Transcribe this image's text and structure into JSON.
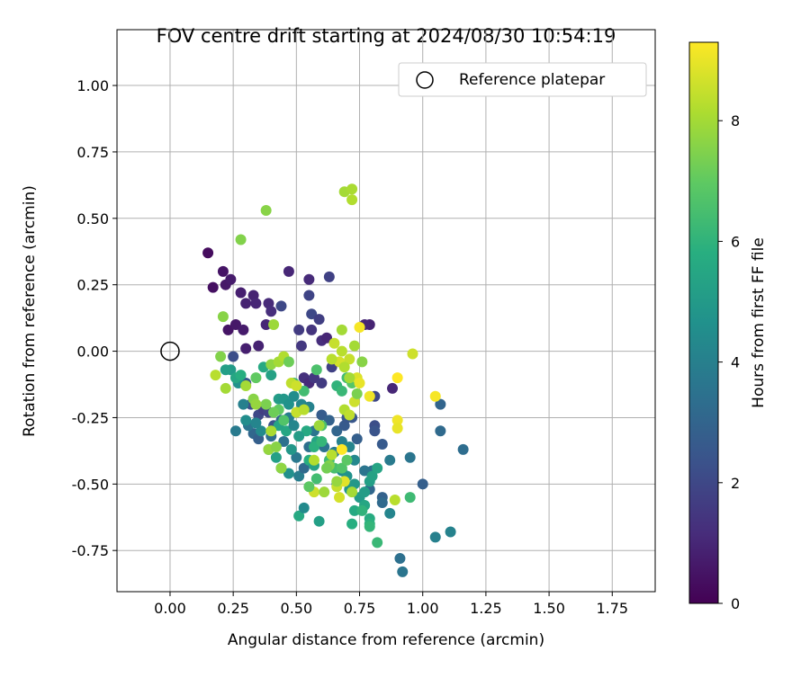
{
  "chart_data": {
    "type": "scatter",
    "title": "FOV centre drift starting at 2024/08/30 10:54:19",
    "xlabel": "Angular distance from reference (arcmin)",
    "ylabel": "Rotation from reference (arcmin)",
    "xlim": [
      -0.21,
      1.92
    ],
    "ylim": [
      -0.905,
      1.21
    ],
    "xticks": [
      "0.00",
      "0.25",
      "0.50",
      "0.75",
      "1.00",
      "1.25",
      "1.50",
      "1.75"
    ],
    "yticks": [
      "-0.75",
      "-0.50",
      "-0.25",
      "0.00",
      "0.25",
      "0.50",
      "0.75",
      "1.00"
    ],
    "grid": true,
    "legend": {
      "placement": "top-right",
      "entries": [
        {
          "label": "Reference platepar",
          "marker": "open-circle"
        }
      ]
    },
    "reference_point": {
      "x": 0.0,
      "y": 0.0
    },
    "colorbar": {
      "label": "Hours from first FF file",
      "range": [
        0,
        9.3
      ],
      "ticks": [
        "0",
        "2",
        "4",
        "6",
        "8"
      ],
      "colormap": "viridis"
    },
    "points": [
      {
        "x": 0.15,
        "y": 0.37,
        "h": 0.3
      },
      {
        "x": 0.17,
        "y": 0.24,
        "h": 0.4
      },
      {
        "x": 0.21,
        "y": 0.3,
        "h": 0.5
      },
      {
        "x": 0.22,
        "y": 0.25,
        "h": 0.6
      },
      {
        "x": 0.24,
        "y": 0.27,
        "h": 0.7
      },
      {
        "x": 0.28,
        "y": 0.22,
        "h": 0.8
      },
      {
        "x": 0.33,
        "y": 0.21,
        "h": 0.9
      },
      {
        "x": 0.34,
        "y": 0.18,
        "h": 1.0
      },
      {
        "x": 0.3,
        "y": 0.18,
        "h": 0.9
      },
      {
        "x": 0.23,
        "y": 0.08,
        "h": 0.5
      },
      {
        "x": 0.26,
        "y": 0.1,
        "h": 0.6
      },
      {
        "x": 0.29,
        "y": 0.08,
        "h": 0.7
      },
      {
        "x": 0.3,
        "y": 0.01,
        "h": 0.8
      },
      {
        "x": 0.35,
        "y": 0.02,
        "h": 0.9
      },
      {
        "x": 0.39,
        "y": 0.18,
        "h": 1.1
      },
      {
        "x": 0.4,
        "y": 0.15,
        "h": 1.2
      },
      {
        "x": 0.38,
        "y": 0.1,
        "h": 1.0
      },
      {
        "x": 0.47,
        "y": 0.3,
        "h": 1.0
      },
      {
        "x": 0.55,
        "y": 0.27,
        "h": 1.1
      },
      {
        "x": 0.63,
        "y": 0.28,
        "h": 1.8
      },
      {
        "x": 0.44,
        "y": 0.17,
        "h": 2.0
      },
      {
        "x": 0.55,
        "y": 0.21,
        "h": 1.9
      },
      {
        "x": 0.56,
        "y": 0.14,
        "h": 2.0
      },
      {
        "x": 0.59,
        "y": 0.12,
        "h": 1.7
      },
      {
        "x": 0.51,
        "y": 0.08,
        "h": 1.6
      },
      {
        "x": 0.52,
        "y": 0.02,
        "h": 1.5
      },
      {
        "x": 0.56,
        "y": 0.08,
        "h": 1.4
      },
      {
        "x": 0.6,
        "y": 0.04,
        "h": 1.2
      },
      {
        "x": 0.62,
        "y": 0.05,
        "h": 1.0
      },
      {
        "x": 0.79,
        "y": 0.1,
        "h": 0.9
      },
      {
        "x": 0.77,
        "y": 0.1,
        "h": 1.0
      },
      {
        "x": 0.53,
        "y": -0.1,
        "h": 1.3
      },
      {
        "x": 0.55,
        "y": -0.12,
        "h": 1.1
      },
      {
        "x": 0.57,
        "y": -0.1,
        "h": 1.5
      },
      {
        "x": 0.6,
        "y": -0.12,
        "h": 1.6
      },
      {
        "x": 0.64,
        "y": -0.06,
        "h": 1.8
      },
      {
        "x": 0.88,
        "y": -0.14,
        "h": 1.0
      },
      {
        "x": 0.81,
        "y": -0.17,
        "h": 2.0
      },
      {
        "x": 0.81,
        "y": -0.28,
        "h": 2.2
      },
      {
        "x": 0.81,
        "y": -0.3,
        "h": 2.4
      },
      {
        "x": 0.84,
        "y": -0.35,
        "h": 2.6
      },
      {
        "x": 0.74,
        "y": -0.33,
        "h": 2.8
      },
      {
        "x": 0.72,
        "y": -0.25,
        "h": 2.5
      },
      {
        "x": 1.07,
        "y": -0.2,
        "h": 3.0
      },
      {
        "x": 1.07,
        "y": -0.3,
        "h": 3.2
      },
      {
        "x": 1.16,
        "y": -0.37,
        "h": 3.3
      },
      {
        "x": 1.0,
        "y": -0.5,
        "h": 2.8
      },
      {
        "x": 0.95,
        "y": -0.4,
        "h": 3.6
      },
      {
        "x": 0.87,
        "y": -0.41,
        "h": 3.8
      },
      {
        "x": 0.91,
        "y": -0.78,
        "h": 3.4
      },
      {
        "x": 0.92,
        "y": -0.83,
        "h": 3.6
      },
      {
        "x": 1.05,
        "y": -0.7,
        "h": 4.0
      },
      {
        "x": 1.11,
        "y": -0.68,
        "h": 4.1
      },
      {
        "x": 0.87,
        "y": -0.61,
        "h": 4.2
      },
      {
        "x": 0.84,
        "y": -0.55,
        "h": 2.9
      },
      {
        "x": 0.84,
        "y": -0.57,
        "h": 3.2
      },
      {
        "x": 0.79,
        "y": -0.52,
        "h": 3.1
      },
      {
        "x": 0.8,
        "y": -0.45,
        "h": 3.4
      },
      {
        "x": 0.77,
        "y": -0.45,
        "h": 3.6
      },
      {
        "x": 0.25,
        "y": -0.02,
        "h": 2.2
      },
      {
        "x": 0.3,
        "y": -0.12,
        "h": 2.5
      },
      {
        "x": 0.32,
        "y": -0.2,
        "h": 2.2
      },
      {
        "x": 0.35,
        "y": -0.24,
        "h": 2.0
      },
      {
        "x": 0.37,
        "y": -0.22,
        "h": 1.7
      },
      {
        "x": 0.39,
        "y": -0.23,
        "h": 1.9
      },
      {
        "x": 0.41,
        "y": -0.28,
        "h": 2.4
      },
      {
        "x": 0.44,
        "y": -0.26,
        "h": 3.0
      },
      {
        "x": 0.33,
        "y": -0.31,
        "h": 3.1
      },
      {
        "x": 0.35,
        "y": -0.33,
        "h": 2.8
      },
      {
        "x": 0.26,
        "y": -0.3,
        "h": 3.8
      },
      {
        "x": 0.31,
        "y": -0.28,
        "h": 3.6
      },
      {
        "x": 0.4,
        "y": -0.32,
        "h": 3.3
      },
      {
        "x": 0.45,
        "y": -0.34,
        "h": 3.5
      },
      {
        "x": 0.5,
        "y": -0.4,
        "h": 3.7
      },
      {
        "x": 0.51,
        "y": -0.47,
        "h": 3.9
      },
      {
        "x": 0.53,
        "y": -0.44,
        "h": 3.2
      },
      {
        "x": 0.55,
        "y": -0.36,
        "h": 3.4
      },
      {
        "x": 0.57,
        "y": -0.3,
        "h": 3.6
      },
      {
        "x": 0.6,
        "y": -0.24,
        "h": 2.7
      },
      {
        "x": 0.63,
        "y": -0.26,
        "h": 2.9
      },
      {
        "x": 0.66,
        "y": -0.3,
        "h": 3.0
      },
      {
        "x": 0.69,
        "y": -0.28,
        "h": 2.6
      },
      {
        "x": 0.7,
        "y": -0.25,
        "h": 2.5
      },
      {
        "x": 0.61,
        "y": -0.36,
        "h": 3.5
      },
      {
        "x": 0.65,
        "y": -0.38,
        "h": 3.8
      },
      {
        "x": 0.68,
        "y": -0.34,
        "h": 4.0
      },
      {
        "x": 0.71,
        "y": -0.36,
        "h": 4.2
      },
      {
        "x": 0.73,
        "y": -0.41,
        "h": 4.3
      },
      {
        "x": 0.68,
        "y": -0.45,
        "h": 4.5
      },
      {
        "x": 0.7,
        "y": -0.47,
        "h": 4.7
      },
      {
        "x": 0.71,
        "y": -0.52,
        "h": 4.8
      },
      {
        "x": 0.66,
        "y": -0.5,
        "h": 4.6
      },
      {
        "x": 0.73,
        "y": -0.5,
        "h": 4.9
      },
      {
        "x": 0.75,
        "y": -0.55,
        "h": 5.0
      },
      {
        "x": 0.77,
        "y": -0.53,
        "h": 5.1
      },
      {
        "x": 0.79,
        "y": -0.49,
        "h": 5.2
      },
      {
        "x": 0.8,
        "y": -0.47,
        "h": 5.3
      },
      {
        "x": 0.82,
        "y": -0.44,
        "h": 5.4
      },
      {
        "x": 0.77,
        "y": -0.58,
        "h": 5.5
      },
      {
        "x": 0.73,
        "y": -0.6,
        "h": 5.6
      },
      {
        "x": 0.79,
        "y": -0.63,
        "h": 5.7
      },
      {
        "x": 0.72,
        "y": -0.65,
        "h": 5.8
      },
      {
        "x": 0.79,
        "y": -0.65,
        "h": 5.9
      },
      {
        "x": 0.76,
        "y": -0.6,
        "h": 6.0
      },
      {
        "x": 0.79,
        "y": -0.66,
        "h": 6.1
      },
      {
        "x": 0.82,
        "y": -0.72,
        "h": 6.2
      },
      {
        "x": 0.95,
        "y": -0.55,
        "h": 6.3
      },
      {
        "x": 0.51,
        "y": -0.62,
        "h": 5.6
      },
      {
        "x": 0.53,
        "y": -0.59,
        "h": 4.4
      },
      {
        "x": 0.59,
        "y": -0.64,
        "h": 5.2
      },
      {
        "x": 0.58,
        "y": -0.48,
        "h": 6.4
      },
      {
        "x": 0.55,
        "y": -0.41,
        "h": 5.8
      },
      {
        "x": 0.57,
        "y": -0.43,
        "h": 5.3
      },
      {
        "x": 0.58,
        "y": -0.34,
        "h": 5.4
      },
      {
        "x": 0.54,
        "y": -0.3,
        "h": 5.6
      },
      {
        "x": 0.51,
        "y": -0.32,
        "h": 5.1
      },
      {
        "x": 0.48,
        "y": -0.37,
        "h": 4.9
      },
      {
        "x": 0.46,
        "y": -0.3,
        "h": 5.5
      },
      {
        "x": 0.43,
        "y": -0.28,
        "h": 5.4
      },
      {
        "x": 0.42,
        "y": -0.4,
        "h": 5.2
      },
      {
        "x": 0.39,
        "y": -0.37,
        "h": 5.0
      },
      {
        "x": 0.44,
        "y": -0.44,
        "h": 4.8
      },
      {
        "x": 0.47,
        "y": -0.46,
        "h": 4.6
      },
      {
        "x": 0.36,
        "y": -0.3,
        "h": 4.4
      },
      {
        "x": 0.34,
        "y": -0.27,
        "h": 4.2
      },
      {
        "x": 0.3,
        "y": -0.26,
        "h": 4.5
      },
      {
        "x": 0.29,
        "y": -0.2,
        "h": 4.0
      },
      {
        "x": 0.27,
        "y": -0.12,
        "h": 4.7
      },
      {
        "x": 0.24,
        "y": -0.07,
        "h": 5.0
      },
      {
        "x": 0.22,
        "y": -0.07,
        "h": 5.2
      },
      {
        "x": 0.26,
        "y": -0.1,
        "h": 5.5
      },
      {
        "x": 0.28,
        "y": -0.09,
        "h": 5.8
      },
      {
        "x": 0.37,
        "y": -0.06,
        "h": 5.6
      },
      {
        "x": 0.4,
        "y": -0.09,
        "h": 5.3
      },
      {
        "x": 0.43,
        "y": -0.18,
        "h": 5.1
      },
      {
        "x": 0.45,
        "y": -0.18,
        "h": 4.9
      },
      {
        "x": 0.47,
        "y": -0.2,
        "h": 4.7
      },
      {
        "x": 0.49,
        "y": -0.17,
        "h": 4.5
      },
      {
        "x": 0.52,
        "y": -0.2,
        "h": 4.3
      },
      {
        "x": 0.55,
        "y": -0.21,
        "h": 4.1
      },
      {
        "x": 0.47,
        "y": -0.25,
        "h": 3.9
      },
      {
        "x": 0.49,
        "y": -0.28,
        "h": 4.2
      },
      {
        "x": 0.57,
        "y": -0.36,
        "h": 5.9
      },
      {
        "x": 0.6,
        "y": -0.34,
        "h": 6.1
      },
      {
        "x": 0.63,
        "y": -0.41,
        "h": 6.3
      },
      {
        "x": 0.65,
        "y": -0.44,
        "h": 6.5
      },
      {
        "x": 0.68,
        "y": -0.44,
        "h": 6.7
      },
      {
        "x": 0.7,
        "y": -0.41,
        "h": 6.9
      },
      {
        "x": 0.66,
        "y": -0.13,
        "h": 6.0
      },
      {
        "x": 0.68,
        "y": -0.15,
        "h": 6.2
      },
      {
        "x": 0.7,
        "y": -0.1,
        "h": 6.4
      },
      {
        "x": 0.58,
        "y": -0.07,
        "h": 6.6
      },
      {
        "x": 0.72,
        "y": -0.12,
        "h": 6.8
      },
      {
        "x": 0.6,
        "y": -0.28,
        "h": 6.6
      },
      {
        "x": 0.53,
        "y": -0.15,
        "h": 6.4
      },
      {
        "x": 0.49,
        "y": -0.12,
        "h": 6.2
      },
      {
        "x": 0.45,
        "y": -0.26,
        "h": 6.7
      },
      {
        "x": 0.43,
        "y": -0.22,
        "h": 7.0
      },
      {
        "x": 0.41,
        "y": -0.23,
        "h": 7.2
      },
      {
        "x": 0.38,
        "y": -0.2,
        "h": 7.4
      },
      {
        "x": 0.33,
        "y": -0.18,
        "h": 7.6
      },
      {
        "x": 0.34,
        "y": -0.2,
        "h": 7.8
      },
      {
        "x": 0.3,
        "y": -0.13,
        "h": 8.0
      },
      {
        "x": 0.2,
        "y": -0.02,
        "h": 7.5
      },
      {
        "x": 0.21,
        "y": 0.13,
        "h": 7.6
      },
      {
        "x": 0.22,
        "y": -0.14,
        "h": 8.0
      },
      {
        "x": 0.18,
        "y": -0.09,
        "h": 8.3
      },
      {
        "x": 0.28,
        "y": 0.42,
        "h": 7.5
      },
      {
        "x": 0.38,
        "y": 0.53,
        "h": 7.6
      },
      {
        "x": 0.41,
        "y": 0.1,
        "h": 7.9
      },
      {
        "x": 0.4,
        "y": -0.05,
        "h": 7.7
      },
      {
        "x": 0.43,
        "y": -0.04,
        "h": 8.0
      },
      {
        "x": 0.45,
        "y": -0.02,
        "h": 8.2
      },
      {
        "x": 0.48,
        "y": -0.12,
        "h": 8.4
      },
      {
        "x": 0.5,
        "y": -0.13,
        "h": 8.6
      },
      {
        "x": 0.5,
        "y": -0.23,
        "h": 8.5
      },
      {
        "x": 0.53,
        "y": -0.22,
        "h": 8.3
      },
      {
        "x": 0.4,
        "y": -0.3,
        "h": 8.1
      },
      {
        "x": 0.39,
        "y": -0.37,
        "h": 7.8
      },
      {
        "x": 0.42,
        "y": -0.36,
        "h": 7.6
      },
      {
        "x": 0.44,
        "y": -0.44,
        "h": 7.7
      },
      {
        "x": 0.59,
        "y": -0.28,
        "h": 7.9
      },
      {
        "x": 0.57,
        "y": -0.41,
        "h": 8.2
      },
      {
        "x": 0.57,
        "y": -0.53,
        "h": 8.6
      },
      {
        "x": 0.64,
        "y": -0.39,
        "h": 8.3
      },
      {
        "x": 0.66,
        "y": -0.51,
        "h": 8.5
      },
      {
        "x": 0.67,
        "y": -0.55,
        "h": 8.7
      },
      {
        "x": 0.69,
        "y": -0.49,
        "h": 8.9
      },
      {
        "x": 0.72,
        "y": -0.53,
        "h": 8.0
      },
      {
        "x": 0.69,
        "y": -0.22,
        "h": 8.2
      },
      {
        "x": 0.71,
        "y": -0.24,
        "h": 8.4
      },
      {
        "x": 0.73,
        "y": -0.19,
        "h": 8.6
      },
      {
        "x": 0.74,
        "y": -0.1,
        "h": 8.8
      },
      {
        "x": 0.71,
        "y": -0.03,
        "h": 8.5
      },
      {
        "x": 0.68,
        "y": 0.0,
        "h": 8.3
      },
      {
        "x": 0.67,
        "y": -0.04,
        "h": 8.7
      },
      {
        "x": 0.68,
        "y": 0.08,
        "h": 8.0
      },
      {
        "x": 0.65,
        "y": 0.03,
        "h": 8.5
      },
      {
        "x": 0.73,
        "y": 0.02,
        "h": 8.0
      },
      {
        "x": 0.64,
        "y": -0.03,
        "h": 8.3
      },
      {
        "x": 0.69,
        "y": -0.06,
        "h": 8.2
      },
      {
        "x": 0.71,
        "y": -0.1,
        "h": 8.0
      },
      {
        "x": 0.69,
        "y": 0.6,
        "h": 8.0
      },
      {
        "x": 0.72,
        "y": 0.61,
        "h": 8.1
      },
      {
        "x": 0.72,
        "y": 0.57,
        "h": 8.2
      },
      {
        "x": 0.75,
        "y": -0.12,
        "h": 9.0
      },
      {
        "x": 0.75,
        "y": 0.09,
        "h": 9.2
      },
      {
        "x": 0.79,
        "y": -0.17,
        "h": 9.1
      },
      {
        "x": 0.9,
        "y": -0.1,
        "h": 9.3
      },
      {
        "x": 0.96,
        "y": -0.01,
        "h": 8.6
      },
      {
        "x": 1.05,
        "y": -0.17,
        "h": 9.2
      },
      {
        "x": 0.9,
        "y": -0.26,
        "h": 9.1
      },
      {
        "x": 0.9,
        "y": -0.29,
        "h": 9.0
      },
      {
        "x": 0.68,
        "y": -0.37,
        "h": 9.3
      },
      {
        "x": 0.89,
        "y": -0.56,
        "h": 8.3
      },
      {
        "x": 0.61,
        "y": -0.53,
        "h": 7.9
      },
      {
        "x": 0.76,
        "y": -0.04,
        "h": 7.6
      },
      {
        "x": 0.74,
        "y": -0.16,
        "h": 7.4
      },
      {
        "x": 0.66,
        "y": -0.49,
        "h": 7.8
      },
      {
        "x": 0.63,
        "y": -0.43,
        "h": 7.5
      },
      {
        "x": 0.47,
        "y": -0.04,
        "h": 7.2
      },
      {
        "x": 0.34,
        "y": -0.1,
        "h": 7.0
      },
      {
        "x": 0.62,
        "y": -0.44,
        "h": 7.3
      },
      {
        "x": 0.55,
        "y": -0.51,
        "h": 6.9
      }
    ]
  }
}
